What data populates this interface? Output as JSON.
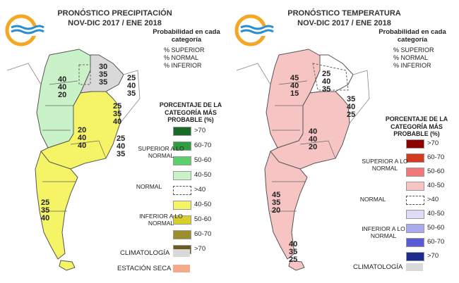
{
  "left_panel": {
    "title_line1": "PRONÓSTICO PRECIPITACIÓN",
    "title_line2": "NOV-DIC 2017 / ENE 2018",
    "prob_header": "Probabilidad en cada categoría",
    "prob_lines": [
      "% SUPERIOR",
      "% NORMAL",
      "% INFERIOR"
    ],
    "pct_header": "PORCENTAJE DE LA CATEGORÍA MÁS PROBABLE (%)",
    "groups": {
      "superior": "SUPERIOR A LO NORMAL",
      "normal": "NORMAL",
      "inferior": "INFERIOR A LO NORMAL"
    },
    "legend": [
      {
        "label": ">70",
        "color": "#1a6b2a"
      },
      {
        "label": "60-70",
        "color": "#2e9e3e"
      },
      {
        "label": "50-60",
        "color": "#5ccf6a"
      },
      {
        "label": "40-50",
        "color": "#c9f2c8"
      },
      {
        "label": ">40",
        "color": "#ffffff",
        "dashed": true
      },
      {
        "label": "40-50",
        "color": "#f4f466"
      },
      {
        "label": "50-60",
        "color": "#d9cf2a"
      },
      {
        "label": "60-70",
        "color": "#9c8f2a"
      },
      {
        "label": ">70",
        "color": "#6a5b22"
      }
    ],
    "climatologia": {
      "label": "CLIMATOLOGÍA",
      "color": "#d9d9d9"
    },
    "estacion_seca": {
      "label": "ESTACIÓN SECA",
      "color": "#f4a98a"
    },
    "map_colors": {
      "green": "#c9f2c8",
      "yellow": "#f4f466",
      "gray": "#d9d9d9"
    },
    "labels": [
      {
        "lines": [
          "30",
          "35",
          "35"
        ]
      },
      {
        "lines": [
          "25",
          "40",
          "35"
        ]
      },
      {
        "lines": [
          "40",
          "40",
          "20"
        ]
      },
      {
        "lines": [
          "25",
          "35",
          "40"
        ]
      },
      {
        "lines": [
          "20",
          "40",
          "40"
        ]
      },
      {
        "lines": [
          "25",
          "40",
          "35"
        ]
      },
      {
        "lines": [
          "25",
          "35",
          "40"
        ]
      }
    ]
  },
  "right_panel": {
    "title_line1": "PRONÓSTICO TEMPERATURA",
    "title_line2": "NOV-DIC 2017 / ENE 2018",
    "prob_header": "Probabilidad en cada categoría",
    "prob_lines": [
      "% SUPERIOR",
      "% NORMAL",
      "% INFERIOR"
    ],
    "pct_header": "PORCENTAJE DE LA CATEGORÍA MÁS PROBABLE (%)",
    "groups": {
      "superior": "SUPERIOR A LO NORMAL",
      "normal": "NORMAL",
      "inferior": "INFERIOR A LO NORMAL"
    },
    "legend": [
      {
        "label": ">70",
        "color": "#8b0000"
      },
      {
        "label": "60-70",
        "color": "#d33a1f"
      },
      {
        "label": "50-60",
        "color": "#f2777a"
      },
      {
        "label": "40-50",
        "color": "#f7c4c4"
      },
      {
        "label": ">40",
        "color": "#ffffff",
        "dashed": true
      },
      {
        "label": "40-50",
        "color": "#dcdcf6"
      },
      {
        "label": "50-60",
        "color": "#a9a9ee"
      },
      {
        "label": "60-70",
        "color": "#5a5ad6"
      },
      {
        "label": ">70",
        "color": "#1c2a8c"
      }
    ],
    "climatologia": {
      "label": "CLIMATOLOGÍA",
      "color": "#d9d9d9"
    },
    "map_colors": {
      "pink": "#f7c4c4"
    },
    "labels": [
      {
        "lines": [
          "45",
          "40",
          "15"
        ]
      },
      {
        "lines": [
          "25",
          "40",
          "35"
        ]
      },
      {
        "lines": [
          "35",
          "40",
          "25"
        ]
      },
      {
        "lines": [
          "40",
          "40",
          "20"
        ]
      },
      {
        "lines": [
          "45",
          "35",
          "20"
        ]
      },
      {
        "lines": [
          "40",
          "35",
          "25"
        ]
      }
    ]
  }
}
